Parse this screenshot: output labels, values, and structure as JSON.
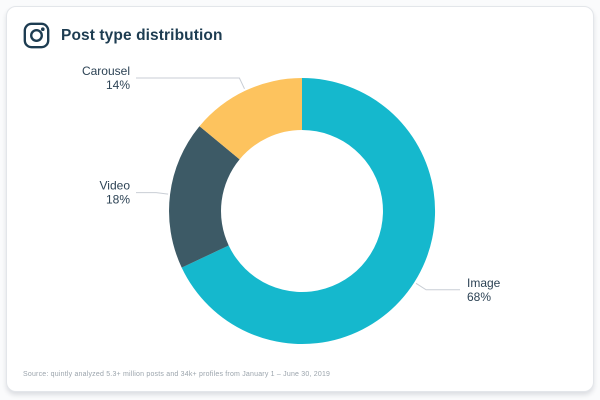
{
  "page": {
    "background_color": "#fafbfc",
    "card_background_color": "#ffffff"
  },
  "card": {
    "title": "Post type distribution",
    "title_color": "#1d3c51",
    "source_note": "Source: quintly analyzed 5.3+ million posts and 34k+ profiles from January 1 – June 30, 2019"
  },
  "icons": {
    "instagram": "instagram-logo-outline"
  },
  "chart_data": {
    "type": "pie",
    "subtype": "donut",
    "title": "Post type distribution",
    "unit": "%",
    "direction": "clockwise",
    "start_angle_deg": 0,
    "inner_radius_ratio": 0.61,
    "labels_style": "outside-with-connectors",
    "connector_color": "#c9ced5",
    "label_text_color": "#2d4355",
    "slices": [
      {
        "label": "Image",
        "value": 68,
        "color": "#15b8cd"
      },
      {
        "label": "Video",
        "value": 18,
        "color": "#3d5a66"
      },
      {
        "label": "Carousel",
        "value": 14,
        "color": "#fdc35e"
      }
    ]
  }
}
